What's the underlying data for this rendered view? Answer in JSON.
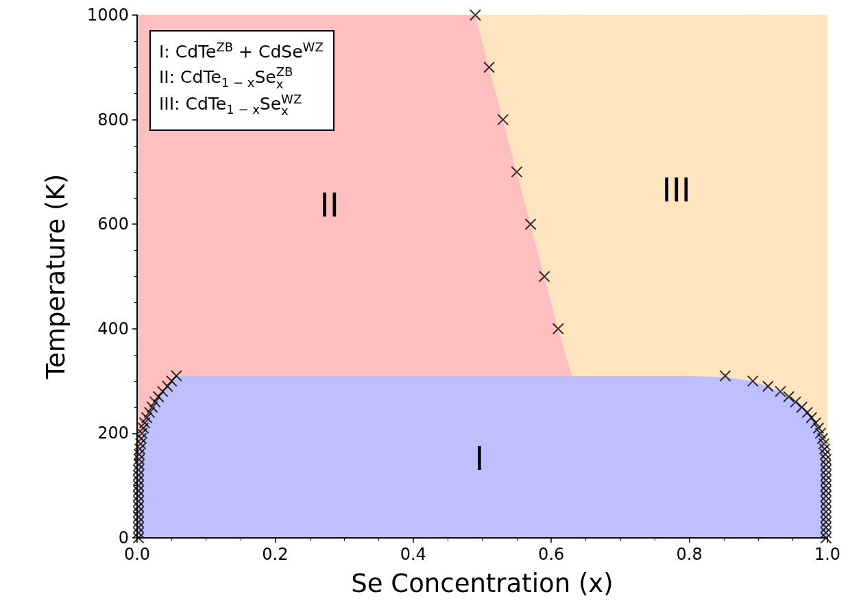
{
  "chart_data": {
    "type": "area",
    "xlabel": "Se Concentration (x)",
    "ylabel": "Temperature (K)",
    "xlim": [
      0,
      1
    ],
    "ylim": [
      0,
      1000
    ],
    "xticks": [
      {
        "value": 0,
        "label": "0.0"
      },
      {
        "value": 0.2,
        "label": "0.2"
      },
      {
        "value": 0.4,
        "label": "0.4"
      },
      {
        "value": 0.6,
        "label": "0.6"
      },
      {
        "value": 0.8,
        "label": "0.8"
      },
      {
        "value": 1,
        "label": "1.0"
      }
    ],
    "yticks": [
      0,
      200,
      400,
      600,
      800,
      1000
    ],
    "stacked": true,
    "x": [
      0,
      0.002,
      0.003,
      0.005,
      0.007,
      0.011,
      0.018,
      0.026,
      0.037,
      0.05,
      0.057,
      0.2,
      0.4,
      0.49,
      0.51,
      0.53,
      0.55,
      0.57,
      0.59,
      0.61,
      0.63,
      0.8,
      0.852,
      0.892,
      0.914,
      0.932,
      0.954,
      0.971,
      0.983,
      0.99,
      0.995,
      0.998,
      1
    ],
    "annotations": [
      "I: CdTe$^{ZB}$ + CdSe$^{WZ}$",
      "II: CdTe$_{1 − x}$Se$_{x}$$^{ZB}$",
      "III: CdTe$_{1 − x}$Se$_{x}$$^{WZ}$"
    ],
    "series": [
      {
        "name": "I",
        "color": "#bfbfff",
        "values": [
          0,
          130,
          160,
          180,
          200,
          220,
          240,
          260,
          280,
          300,
          310,
          310,
          310,
          310,
          310,
          310,
          310,
          310,
          310,
          310,
          310,
          310,
          308,
          300,
          290,
          280,
          260,
          240,
          220,
          200,
          180,
          150,
          0
        ]
      },
      {
        "name": "II",
        "color": "#ffbfbf",
        "values": [
          1000,
          870,
          840,
          820,
          800,
          780,
          760,
          740,
          720,
          700,
          690,
          690,
          690,
          690,
          590,
          490,
          390,
          290,
          190,
          90,
          0,
          0,
          0,
          0,
          0,
          0,
          0,
          0,
          0,
          0,
          0,
          0,
          0
        ]
      },
      {
        "name": "III",
        "color": "#ffe5bf",
        "values": [
          null,
          null,
          null,
          null,
          null,
          null,
          null,
          null,
          null,
          null,
          null,
          null,
          null,
          0,
          100,
          200,
          300,
          400,
          500,
          600,
          690,
          690,
          692,
          700,
          710,
          720,
          740,
          760,
          780,
          800,
          820,
          850,
          1000
        ]
      },
      {
        "type": "scatter",
        "color": "#000000",
        "marker": "cross",
        "x": [
          0.002,
          0.002,
          0.002,
          0.002,
          0.002,
          0.002,
          0.002,
          0.002,
          0.002,
          0.002,
          0.002,
          0.002,
          0.002,
          0.002,
          0.003,
          0.003,
          0.003,
          0.004,
          0.005,
          0.006,
          0.007,
          0.009,
          0.011,
          0.014,
          0.018,
          0.022,
          0.026,
          0.031,
          0.037,
          0.044,
          0.05,
          0.057,
          0.49,
          0.51,
          0.53,
          0.55,
          0.57,
          0.59,
          0.61,
          0.852,
          0.892,
          0.914,
          0.932,
          0.944,
          0.954,
          0.963,
          0.971,
          0.977,
          0.983,
          0.987,
          0.99,
          0.993,
          0.995,
          0.996,
          0.997,
          0.998,
          0.998,
          0.998,
          0.998,
          0.998,
          0.998,
          0.998,
          0.998,
          0.998,
          0.998,
          0.998,
          0.998,
          0.998,
          0.998,
          0.998,
          0.998
        ],
        "values": [
          0,
          10,
          20,
          30,
          40,
          50,
          60,
          70,
          80,
          90,
          100,
          110,
          120,
          130,
          140,
          150,
          160,
          170,
          180,
          190,
          200,
          210,
          220,
          230,
          240,
          250,
          260,
          270,
          280,
          290,
          300,
          310,
          1000,
          900,
          800,
          700,
          600,
          500,
          400,
          310,
          300,
          290,
          280,
          270,
          260,
          250,
          240,
          230,
          220,
          210,
          200,
          190,
          180,
          170,
          160,
          150,
          140,
          130,
          120,
          110,
          100,
          90,
          80,
          70,
          60,
          50,
          40,
          30,
          20,
          10,
          0
        ]
      }
    ]
  }
}
